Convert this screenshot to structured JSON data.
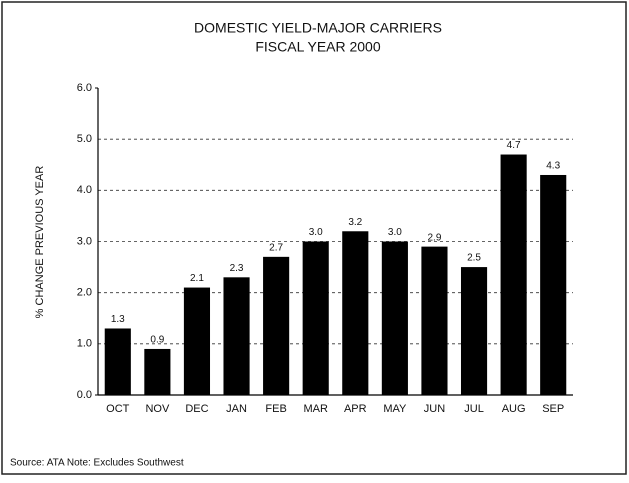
{
  "chart_data": {
    "type": "bar",
    "title": "DOMESTIC YIELD-MAJOR CARRIERS",
    "subtitle": "FISCAL YEAR 2000",
    "y_label": "% CHANGE PREVIOUS YEAR",
    "categories": [
      "OCT",
      "NOV",
      "DEC",
      "JAN",
      "FEB",
      "MAR",
      "APR",
      "MAY",
      "JUN",
      "JUL",
      "AUG",
      "SEP"
    ],
    "values": [
      1.3,
      0.9,
      2.1,
      2.3,
      2.7,
      3.0,
      3.2,
      3.0,
      2.9,
      2.5,
      4.7,
      4.3
    ],
    "value_labels": [
      "1.3",
      "0.9",
      "2.1",
      "2.3",
      "2.7",
      "3.0",
      "3.2",
      "3.0",
      "2.9",
      "2.5",
      "4.7",
      "4.3"
    ],
    "color": "#000000",
    "ylim": [
      0,
      6
    ],
    "yticks": [
      {
        "value": 0,
        "label": "0.0"
      },
      {
        "value": 1,
        "label": "1.0"
      },
      {
        "value": 2,
        "label": "2.0"
      },
      {
        "value": 3,
        "label": "3.0"
      },
      {
        "value": 4,
        "label": "4.0"
      },
      {
        "value": 5,
        "label": "5.0"
      },
      {
        "value": 6,
        "label": "6.0"
      }
    ],
    "grid": true,
    "source_note": "Source: ATA  Note: Excludes Southwest"
  }
}
